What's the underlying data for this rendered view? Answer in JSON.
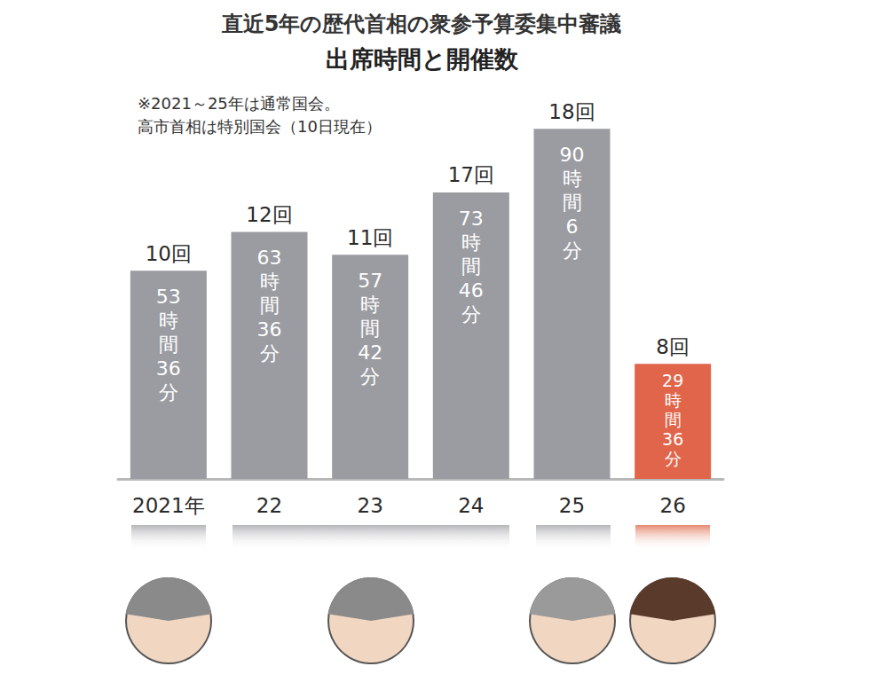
{
  "chart_data": {
    "type": "bar",
    "title": "直近5年の歴代首相の衆参予算委集中審議",
    "subtitle": "出席時間と開催数",
    "notes": [
      "※2021～25年は通常国会。",
      "高市首相は特別国会（10日現在）"
    ],
    "categories": [
      "2021年",
      "22",
      "23",
      "24",
      "25",
      "26"
    ],
    "values": [
      53.6,
      63.6,
      57.7,
      73.77,
      90.1,
      29.6
    ],
    "value_labels": [
      "53時間36分",
      "63時間36分",
      "57時間42分",
      "73時間46分",
      "90時間6分",
      "29時間36分"
    ],
    "count_labels": [
      "10回",
      "12回",
      "11回",
      "17回",
      "18回",
      "8回"
    ],
    "colors": [
      "#9b9ca1",
      "#9b9ca1",
      "#9b9ca1",
      "#9b9ca1",
      "#9b9ca1",
      "#e0654a"
    ],
    "ylim": [
      0,
      100
    ],
    "data_labels": true,
    "tick_labels": "x",
    "grid": false
  }
}
